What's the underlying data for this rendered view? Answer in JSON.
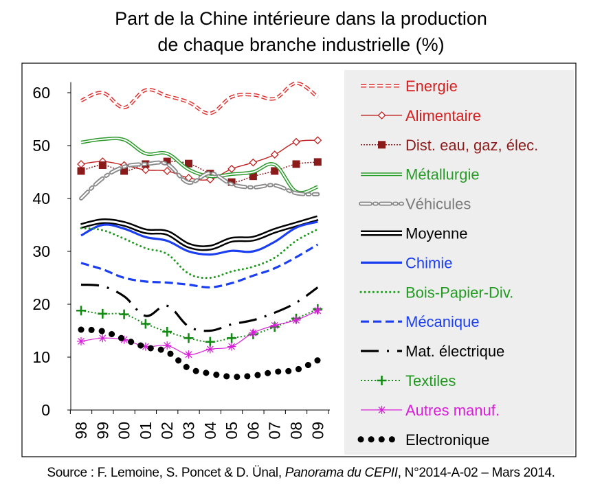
{
  "title_line1": "Part de la Chine intérieure dans la production",
  "title_line2": "de chaque branche industrielle (%)",
  "source": {
    "prefix": "Source : F. Lemoine, S. Poncet & D. Ünal, ",
    "publication": "Panorama du CEPII",
    "suffix": ", N°2014-A-02 – Mars 2014."
  },
  "chart_data": {
    "type": "line",
    "title": "Part de la Chine intérieure dans la production de chaque branche industrielle (%)",
    "xlabel": "",
    "ylabel": "",
    "ylim": [
      0,
      62
    ],
    "yticks": [
      0,
      10,
      20,
      30,
      40,
      50,
      60
    ],
    "grid": false,
    "legend_position": "right",
    "categories": [
      "98",
      "99",
      "00",
      "01",
      "02",
      "03",
      "04",
      "05",
      "06",
      "07",
      "08",
      "09"
    ],
    "series": [
      {
        "name": "Energie",
        "color": "#e03030",
        "label_color": "#d42020",
        "style": "dashed-double",
        "values": [
          58.5,
          60.0,
          57.2,
          60.5,
          59.4,
          58.2,
          56.1,
          59.2,
          59.6,
          58.9,
          61.8,
          59.2
        ]
      },
      {
        "name": "Alimentaire",
        "color": "#c02020",
        "label_color": "#d42020",
        "style": "solid-diamond",
        "values": [
          46.5,
          47.0,
          46.3,
          45.4,
          45.2,
          43.9,
          43.6,
          45.6,
          46.8,
          48.3,
          50.7,
          51.0
        ]
      },
      {
        "name": "Dist. eau, gaz, élec.",
        "color": "#8b1a1a",
        "label_color": "#8b1a1a",
        "style": "dotted-square",
        "values": [
          45.2,
          46.3,
          45.2,
          46.5,
          47.0,
          46.6,
          44.7,
          43.1,
          44.2,
          45.2,
          46.5,
          46.9
        ]
      },
      {
        "name": "Métallurgie",
        "color": "#2a9a2a",
        "label_color": "#2a9a2a",
        "style": "double",
        "values": [
          50.6,
          51.2,
          51.1,
          48.5,
          48.5,
          45.5,
          44.2,
          44.6,
          45.0,
          46.4,
          41.3,
          42.2
        ]
      },
      {
        "name": "Véhicules",
        "color": "#8a8a8a",
        "label_color": "#7a7a7a",
        "style": "dash-dot-double",
        "values": [
          40.0,
          43.8,
          46.0,
          46.5,
          46.5,
          43.0,
          44.8,
          42.7,
          42.1,
          42.5,
          41.0,
          40.8
        ]
      },
      {
        "name": "Moyenne",
        "color": "#000000",
        "label_color": "#000000",
        "style": "double-thick",
        "values": [
          34.8,
          35.7,
          35.2,
          33.8,
          33.5,
          31.1,
          30.7,
          32.2,
          32.4,
          33.9,
          35.1,
          36.3
        ]
      },
      {
        "name": "Chimie",
        "color": "#1a3ef0",
        "label_color": "#1a3ef0",
        "style": "solid-thick",
        "values": [
          33.0,
          35.0,
          34.3,
          32.7,
          32.0,
          30.0,
          29.4,
          30.1,
          30.0,
          31.8,
          34.5,
          35.6
        ]
      },
      {
        "name": "Bois-Papier-Div.",
        "color": "#1f9a1f",
        "label_color": "#1f9a1f",
        "style": "dotted",
        "values": [
          34.4,
          34.0,
          32.4,
          30.6,
          29.5,
          25.8,
          25.0,
          26.2,
          27.1,
          28.8,
          32.0,
          34.2
        ]
      },
      {
        "name": "Mécanique",
        "color": "#1a3ef0",
        "label_color": "#1a3ef0",
        "style": "dashed-thick",
        "values": [
          27.8,
          26.6,
          25.0,
          24.3,
          24.1,
          23.7,
          23.2,
          24.0,
          25.4,
          26.8,
          28.9,
          31.3
        ]
      },
      {
        "name": "Mat. électrique",
        "color": "#000000",
        "label_color": "#000000",
        "style": "long-dash-dot",
        "values": [
          23.7,
          23.4,
          21.5,
          17.8,
          19.7,
          15.8,
          15.0,
          16.2,
          17.0,
          18.4,
          20.3,
          23.2
        ]
      },
      {
        "name": "Textiles",
        "color": "#138a13",
        "label_color": "#1f9a1f",
        "style": "dotted-plus",
        "values": [
          18.8,
          18.2,
          18.1,
          16.3,
          14.8,
          13.6,
          12.9,
          13.6,
          14.3,
          15.7,
          17.3,
          19.1
        ]
      },
      {
        "name": "Autres manuf.",
        "color": "#d81ed8",
        "label_color": "#d81ed8",
        "style": "solid-star",
        "values": [
          13.0,
          13.6,
          13.3,
          12.0,
          12.2,
          10.5,
          11.5,
          12.0,
          14.6,
          16.0,
          17.0,
          18.8
        ]
      },
      {
        "name": "Electronique",
        "color": "#000000",
        "label_color": "#000000",
        "style": "big-dots",
        "values": [
          15.2,
          14.9,
          13.4,
          11.9,
          11.0,
          7.9,
          6.9,
          6.3,
          6.5,
          7.2,
          7.6,
          9.4
        ]
      }
    ]
  }
}
